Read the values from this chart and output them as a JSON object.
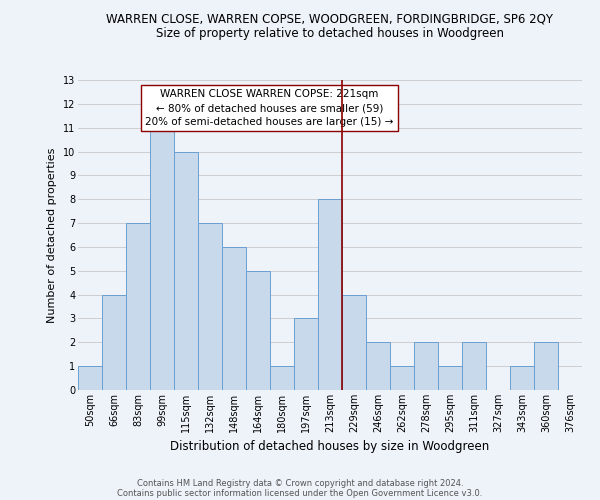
{
  "title": "WARREN CLOSE, WARREN COPSE, WOODGREEN, FORDINGBRIDGE, SP6 2QY",
  "subtitle": "Size of property relative to detached houses in Woodgreen",
  "xlabel": "Distribution of detached houses by size in Woodgreen",
  "ylabel": "Number of detached properties",
  "footnote1": "Contains HM Land Registry data © Crown copyright and database right 2024.",
  "footnote2": "Contains public sector information licensed under the Open Government Licence v3.0.",
  "categories": [
    "50sqm",
    "66sqm",
    "83sqm",
    "99sqm",
    "115sqm",
    "132sqm",
    "148sqm",
    "164sqm",
    "180sqm",
    "197sqm",
    "213sqm",
    "229sqm",
    "246sqm",
    "262sqm",
    "278sqm",
    "295sqm",
    "311sqm",
    "327sqm",
    "343sqm",
    "360sqm",
    "376sqm"
  ],
  "values": [
    1,
    4,
    7,
    11,
    10,
    7,
    6,
    5,
    1,
    3,
    8,
    4,
    2,
    1,
    2,
    1,
    2,
    0,
    1,
    2,
    0
  ],
  "bar_color": "#c9d9ec",
  "bar_edge_color": "#6a9fd0",
  "grid_color": "#c8c8c8",
  "bg_color": "#eef2f9",
  "annotation_box_text": "WARREN CLOSE WARREN COPSE: 221sqm\n← 80% of detached houses are smaller (59)\n20% of semi-detached houses are larger (15) →",
  "vertical_line_x": 10.5,
  "ylim": [
    0,
    13
  ],
  "yticks": [
    0,
    1,
    2,
    3,
    4,
    5,
    6,
    7,
    8,
    9,
    10,
    11,
    12,
    13
  ],
  "title_fontsize": 8.5,
  "subtitle_fontsize": 8.5,
  "ylabel_fontsize": 8,
  "xlabel_fontsize": 8.5,
  "tick_fontsize": 7,
  "annot_fontsize": 7.5,
  "footnote_fontsize": 6
}
